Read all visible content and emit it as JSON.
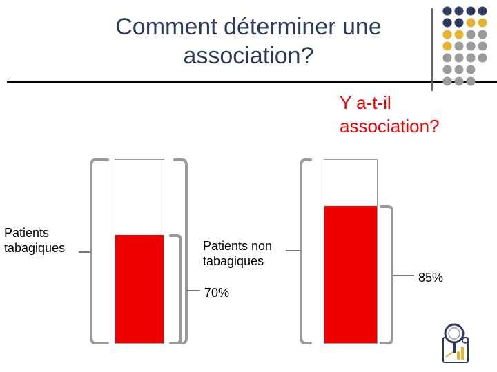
{
  "slide": {
    "title": "Comment déterminer une association?",
    "question_line1": "Y a-t-il",
    "question_line2": "association?"
  },
  "groups": [
    {
      "label_line1": "Patients",
      "label_line2": "tabagiques",
      "percent_label": "70%",
      "fill_fraction": 0.59
    },
    {
      "label_line1": "Patients non",
      "label_line2": "tabagiques",
      "percent_label": "85%",
      "fill_fraction": 0.75
    }
  ],
  "colors": {
    "title": "#2a3b5c",
    "accent_red": "#ee0000",
    "dot_navy": "#2a3b5c",
    "dot_yellow": "#e6b32e",
    "dot_gray": "#9a9a9a"
  },
  "icons": [
    "dot-grid-logo",
    "magnifier-chart-icon"
  ]
}
